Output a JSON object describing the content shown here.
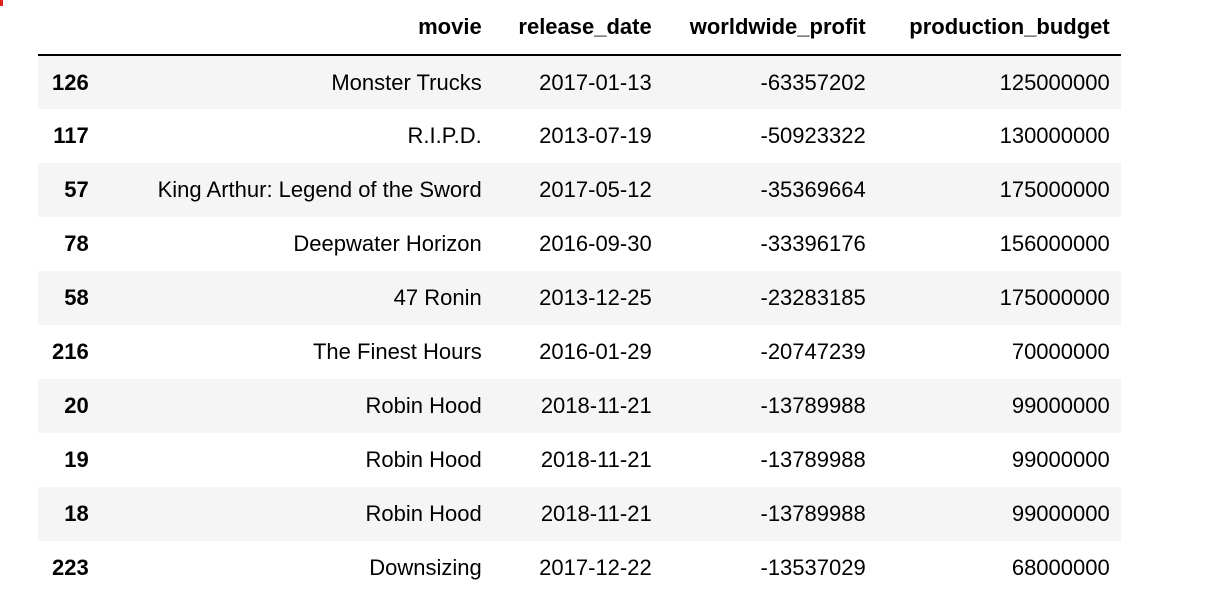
{
  "table": {
    "index_header": "",
    "columns": [
      "movie",
      "release_date",
      "worldwide_profit",
      "production_budget"
    ],
    "rows": [
      {
        "index": "126",
        "movie": "Monster Trucks",
        "release_date": "2017-01-13",
        "worldwide_profit": "-63357202",
        "production_budget": "125000000"
      },
      {
        "index": "117",
        "movie": "R.I.P.D.",
        "release_date": "2013-07-19",
        "worldwide_profit": "-50923322",
        "production_budget": "130000000"
      },
      {
        "index": "57",
        "movie": "King Arthur: Legend of the Sword",
        "release_date": "2017-05-12",
        "worldwide_profit": "-35369664",
        "production_budget": "175000000"
      },
      {
        "index": "78",
        "movie": "Deepwater Horizon",
        "release_date": "2016-09-30",
        "worldwide_profit": "-33396176",
        "production_budget": "156000000"
      },
      {
        "index": "58",
        "movie": "47 Ronin",
        "release_date": "2013-12-25",
        "worldwide_profit": "-23283185",
        "production_budget": "175000000"
      },
      {
        "index": "216",
        "movie": "The Finest Hours",
        "release_date": "2016-01-29",
        "worldwide_profit": "-20747239",
        "production_budget": "70000000"
      },
      {
        "index": "20",
        "movie": "Robin Hood",
        "release_date": "2018-11-21",
        "worldwide_profit": "-13789988",
        "production_budget": "99000000"
      },
      {
        "index": "19",
        "movie": "Robin Hood",
        "release_date": "2018-11-21",
        "worldwide_profit": "-13789988",
        "production_budget": "99000000"
      },
      {
        "index": "18",
        "movie": "Robin Hood",
        "release_date": "2018-11-21",
        "worldwide_profit": "-13789988",
        "production_budget": "99000000"
      },
      {
        "index": "223",
        "movie": "Downsizing",
        "release_date": "2017-12-22",
        "worldwide_profit": "-13537029",
        "production_budget": "68000000"
      }
    ]
  },
  "colors": {
    "stripe": "#f5f5f5",
    "header_rule": "#000000",
    "corner_mark": "#e0201c"
  }
}
